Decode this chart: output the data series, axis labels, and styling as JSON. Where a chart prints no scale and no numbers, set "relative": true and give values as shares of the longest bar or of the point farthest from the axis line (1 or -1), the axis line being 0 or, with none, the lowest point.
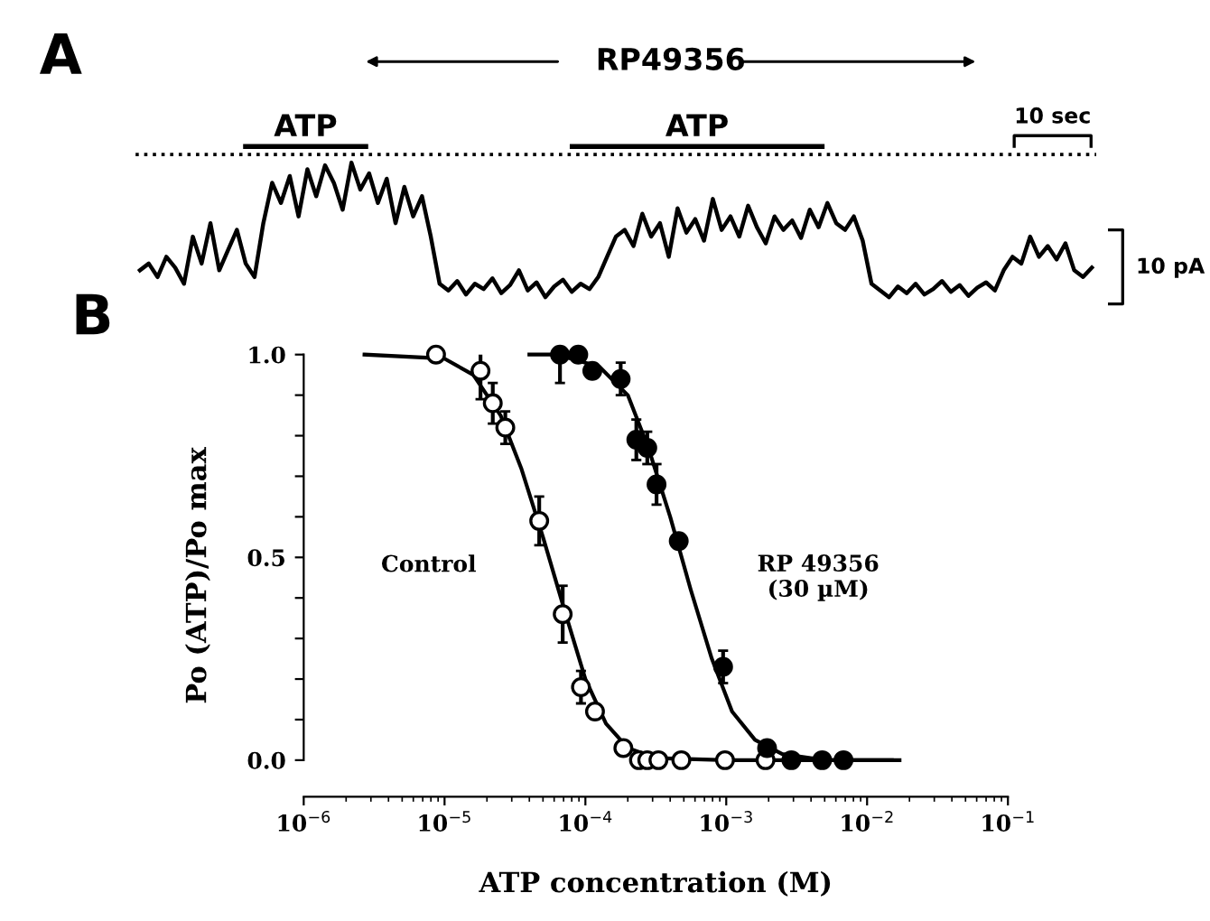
{
  "chart_data": [
    {
      "type": "line",
      "title": "A",
      "relative": true,
      "color": "#000000",
      "annotations": [
        "RP49356",
        "ATP",
        "ATP",
        "10 sec",
        "10 pA"
      ],
      "ref_lines": [
        {
          "axis": "y",
          "value": 1.06,
          "line_style": "dotted",
          "color": "#000000"
        }
      ],
      "categories": [
        null,
        null,
        null,
        null,
        null,
        null,
        null,
        null,
        null,
        null,
        null,
        null,
        null,
        null,
        null,
        null,
        null,
        null,
        null,
        null,
        null,
        null,
        null,
        null,
        null,
        null,
        null,
        null,
        null,
        null,
        null,
        null,
        null,
        null,
        null,
        null,
        null,
        null,
        null,
        null,
        null,
        null,
        null,
        null,
        null,
        null,
        null,
        null,
        null,
        null,
        null,
        null,
        null,
        null,
        null,
        null,
        null,
        null,
        null,
        null,
        null,
        null,
        null,
        null,
        null,
        null,
        null,
        null,
        null,
        null,
        null,
        null,
        null,
        null,
        null,
        null,
        null,
        null,
        null,
        null,
        null,
        null,
        null,
        null,
        null,
        null,
        null,
        null,
        null,
        null,
        null,
        null,
        null,
        null,
        null,
        null,
        null,
        null,
        null,
        null,
        null,
        null,
        null,
        null,
        null,
        null,
        null,
        null,
        null
      ],
      "values": [
        0.2,
        0.25,
        0.15,
        0.3,
        0.22,
        0.1,
        0.45,
        0.25,
        0.55,
        0.2,
        0.35,
        0.5,
        0.25,
        0.15,
        0.55,
        0.85,
        0.7,
        0.9,
        0.6,
        0.95,
        0.75,
        0.98,
        0.85,
        0.65,
        1.0,
        0.8,
        0.92,
        0.7,
        0.88,
        0.55,
        0.82,
        0.6,
        0.75,
        0.45,
        0.1,
        0.05,
        0.12,
        0.02,
        0.1,
        0.06,
        0.14,
        0.03,
        0.09,
        0.2,
        0.05,
        0.11,
        0.0,
        0.08,
        0.13,
        0.04,
        0.1,
        0.06,
        0.15,
        0.3,
        0.45,
        0.5,
        0.38,
        0.62,
        0.45,
        0.55,
        0.3,
        0.66,
        0.48,
        0.58,
        0.42,
        0.73,
        0.5,
        0.6,
        0.45,
        0.68,
        0.52,
        0.4,
        0.6,
        0.5,
        0.57,
        0.44,
        0.65,
        0.52,
        0.7,
        0.55,
        0.5,
        0.6,
        0.42,
        0.1,
        0.05,
        0.0,
        0.08,
        0.03,
        0.1,
        0.02,
        0.06,
        0.12,
        0.04,
        0.09,
        0.01,
        0.07,
        0.11,
        0.05,
        0.2,
        0.3,
        0.25,
        0.45,
        0.3,
        0.38,
        0.28,
        0.4,
        0.2,
        0.15,
        0.22
      ]
    },
    {
      "type": "scatter",
      "title": "B",
      "xlabel": "ATP concentration (M)",
      "ylabel": "Po (ATP)/Po max",
      "log": "x",
      "legend": false,
      "grid": false,
      "xlim": [
        1e-06,
        0.1
      ],
      "ylim": [
        -0.09,
        1.0
      ],
      "xticks": [
        {
          "value": 1e-06,
          "label": "10$^{−6}$"
        },
        {
          "value": 1e-05,
          "label": "10$^{−5}$"
        },
        {
          "value": 0.0001,
          "label": "10$^{−4}$"
        },
        {
          "value": 0.001,
          "label": "10$^{−3}$"
        },
        {
          "value": 0.01,
          "label": "10$^{−2}$"
        },
        {
          "value": 0.1,
          "label": "10$^{−1}$"
        }
      ],
      "yticks": [
        {
          "value": 0.0,
          "label": "0.0"
        },
        {
          "value": 0.1,
          "label": null
        },
        {
          "value": 0.2,
          "label": null
        },
        {
          "value": 0.3,
          "label": null
        },
        {
          "value": 0.4,
          "label": null
        },
        {
          "value": 0.5,
          "label": "0.5"
        },
        {
          "value": 0.6,
          "label": null
        },
        {
          "value": 0.7,
          "label": null
        },
        {
          "value": 0.8,
          "label": null
        },
        {
          "value": 0.9,
          "label": null
        },
        {
          "value": 1.0,
          "label": "1.0"
        }
      ],
      "series": [
        {
          "name": "Control",
          "type": "scatter",
          "marker": "circle",
          "color": "#000000",
          "x": [
            8.7e-06,
            1.8e-05,
            2.2e-05,
            2.7e-05,
            4.7e-05,
            6.9e-05,
            9.3e-05,
            0.000117,
            0.000186,
            0.00024,
            0.000275,
            0.00033,
            0.00048,
            0.00098,
            0.0019
          ],
          "values": [
            1.0,
            0.96,
            0.88,
            0.82,
            0.59,
            0.36,
            0.18,
            0.12,
            0.03,
            0,
            0,
            0,
            0,
            0,
            0
          ],
          "errors": [
            null,
            0.07,
            0.05,
            0.04,
            0.06,
            0.07,
            0.04,
            null,
            null,
            null,
            null,
            null,
            null,
            null,
            null
          ]
        },
        {
          "name": "RP 49356\n(30 µM)",
          "type": "scatter",
          "marker": "circle",
          "color": "#000000",
          "x": [
            6.6e-05,
            8.9e-05,
            0.000112,
            0.000178,
            0.00023,
            0.000275,
            0.00032,
            0.00046,
            0.00095,
            0.00195,
            0.0029,
            0.0048,
            0.0068
          ],
          "values": [
            1.0,
            1.0,
            0.96,
            0.94,
            0.79,
            0.77,
            0.68,
            0.54,
            0.23,
            0.03,
            0,
            0,
            0
          ],
          "errors": [
            0.07,
            null,
            null,
            0.04,
            0.05,
            0.04,
            0.05,
            null,
            0.04,
            null,
            null,
            null,
            null
          ]
        },
        {
          "type": "line",
          "marker": "none",
          "line_style": "solid",
          "color": "#000000",
          "x": [
            2.7e-06,
            1e-05,
            1.6e-05,
            2.5e-05,
            3.5e-05,
            5e-05,
            7.1e-05,
            0.0001,
            0.00014,
            0.0002,
            0.00032,
            0.001,
            0.017
          ],
          "values": [
            1.0,
            0.99,
            0.95,
            0.85,
            0.72,
            0.55,
            0.37,
            0.2,
            0.09,
            0.03,
            0.005,
            0,
            0
          ]
        },
        {
          "type": "line",
          "marker": "none",
          "line_style": "solid",
          "color": "#000000",
          "x": [
            4e-05,
            6.3e-05,
            0.000126,
            0.0002,
            0.00028,
            0.0004,
            0.00056,
            0.00079,
            0.0011,
            0.0016,
            0.0025,
            0.005,
            0.015
          ],
          "values": [
            1.0,
            1.0,
            0.97,
            0.9,
            0.77,
            0.6,
            0.42,
            0.25,
            0.12,
            0.05,
            0.015,
            0,
            0
          ]
        }
      ]
    }
  ]
}
